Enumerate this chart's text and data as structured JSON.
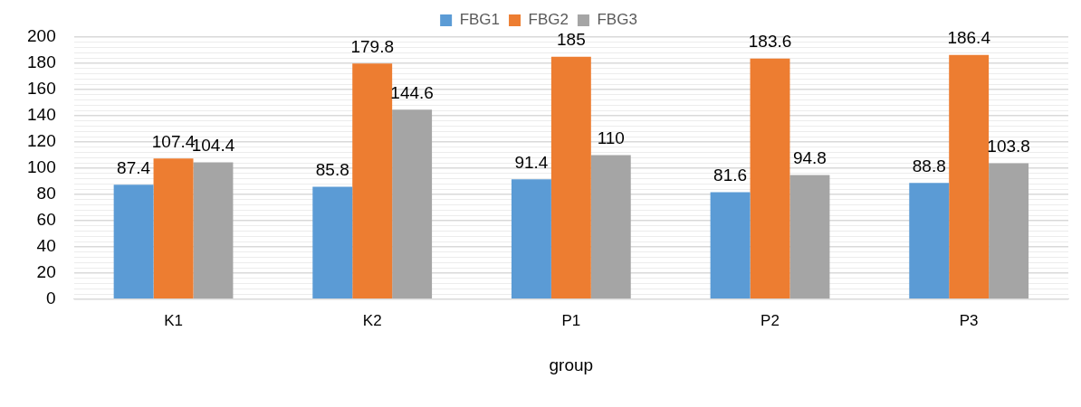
{
  "chart_data": {
    "type": "bar",
    "xlabel": "group",
    "categories": [
      "K1",
      "K2",
      "P1",
      "P2",
      "P3"
    ],
    "series": [
      {
        "name": "FBG1",
        "color": "#5b9bd5",
        "values": [
          87.4,
          85.8,
          91.4,
          81.6,
          88.8
        ]
      },
      {
        "name": "FBG2",
        "color": "#ed7d31",
        "values": [
          107.4,
          179.8,
          185,
          183.6,
          186.4
        ]
      },
      {
        "name": "FBG3",
        "color": "#a5a5a5",
        "values": [
          104.4,
          144.6,
          110,
          94.8,
          103.8
        ]
      }
    ],
    "ylim": [
      0,
      200
    ],
    "yticks": [
      0,
      {
        "value": 4,
        "label": null
      },
      {
        "value": 8,
        "label": null
      },
      {
        "value": 12,
        "label": null
      },
      {
        "value": 16,
        "label": null
      },
      20,
      {
        "value": 24,
        "label": null
      },
      {
        "value": 28,
        "label": null
      },
      {
        "value": 32,
        "label": null
      },
      {
        "value": 36,
        "label": null
      },
      40,
      {
        "value": 44,
        "label": null
      },
      {
        "value": 48,
        "label": null
      },
      {
        "value": 52,
        "label": null
      },
      {
        "value": 56,
        "label": null
      },
      60,
      {
        "value": 64,
        "label": null
      },
      {
        "value": 68,
        "label": null
      },
      {
        "value": 72,
        "label": null
      },
      {
        "value": 76,
        "label": null
      },
      80,
      {
        "value": 84,
        "label": null
      },
      {
        "value": 88,
        "label": null
      },
      {
        "value": 92,
        "label": null
      },
      {
        "value": 96,
        "label": null
      },
      100,
      {
        "value": 104,
        "label": null
      },
      {
        "value": 108,
        "label": null
      },
      {
        "value": 112,
        "label": null
      },
      {
        "value": 116,
        "label": null
      },
      120,
      {
        "value": 124,
        "label": null
      },
      {
        "value": 128,
        "label": null
      },
      {
        "value": 132,
        "label": null
      },
      {
        "value": 136,
        "label": null
      },
      140,
      {
        "value": 144,
        "label": null
      },
      {
        "value": 148,
        "label": null
      },
      {
        "value": 152,
        "label": null
      },
      {
        "value": 156,
        "label": null
      },
      160,
      {
        "value": 164,
        "label": null
      },
      {
        "value": 168,
        "label": null
      },
      {
        "value": 172,
        "label": null
      },
      {
        "value": 176,
        "label": null
      },
      180,
      {
        "value": 184,
        "label": null
      },
      {
        "value": 188,
        "label": null
      },
      {
        "value": 192,
        "label": null
      },
      {
        "value": 196,
        "label": null
      },
      200
    ],
    "grid": "y",
    "legend": "top",
    "data_labels": true
  }
}
